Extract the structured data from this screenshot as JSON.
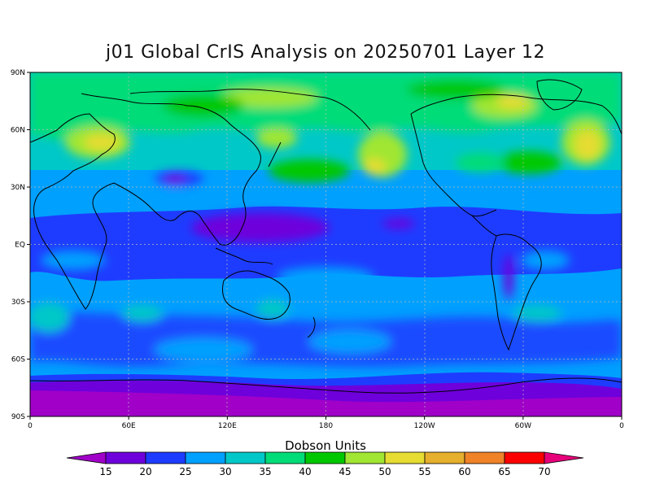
{
  "title": "j01 Global CrIS Analysis on 20250701 Layer 12",
  "colorbar": {
    "title": "Dobson Units",
    "labels": [
      "15",
      "20",
      "25",
      "30",
      "35",
      "40",
      "45",
      "50",
      "55",
      "60",
      "65",
      "70"
    ],
    "colors": [
      "#a000c8",
      "#6e00dc",
      "#1e3cff",
      "#00a0ff",
      "#00c8c8",
      "#00dc78",
      "#00c800",
      "#a0e632",
      "#e6dc32",
      "#e6af2d",
      "#f08228",
      "#fa0000",
      "#e6007a"
    ]
  },
  "axes": {
    "lat_ticks": [
      "90N",
      "60N",
      "30N",
      "EQ",
      "30S",
      "60S",
      "90S"
    ],
    "lon_ticks": [
      "0",
      "60E",
      "120E",
      "180",
      "120W",
      "60W",
      "0"
    ]
  }
}
